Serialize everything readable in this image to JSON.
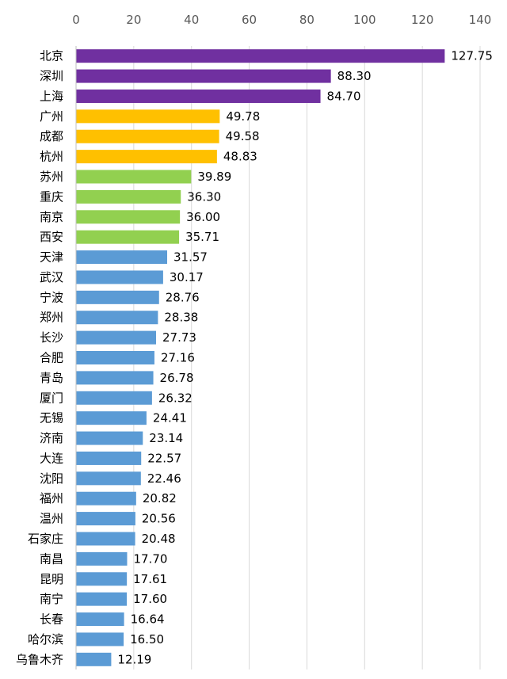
{
  "chart_data": {
    "type": "bar",
    "orientation": "horizontal",
    "title": "",
    "xlabel": "",
    "ylabel": "",
    "xlim": [
      0,
      140
    ],
    "x_ticks": [
      "0",
      "20",
      "40",
      "60",
      "80",
      "100",
      "120",
      "140"
    ],
    "x_axis_position": "top",
    "grid": true,
    "legend": "none",
    "colors": {
      "tier1": "#7030A0",
      "tier2": "#FFC000",
      "tier3": "#92D050",
      "tier4": "#5B9BD5",
      "grid": "#D9D9D9",
      "axis": "#BFBFBF"
    },
    "categories": [
      "北京",
      "深圳",
      "上海",
      "广州",
      "成都",
      "杭州",
      "苏州",
      "重庆",
      "南京",
      "西安",
      "天津",
      "武汉",
      "宁波",
      "郑州",
      "长沙",
      "合肥",
      "青岛",
      "厦门",
      "无锡",
      "济南",
      "大连",
      "沈阳",
      "福州",
      "温州",
      "石家庄",
      "南昌",
      "昆明",
      "南宁",
      "长春",
      "哈尔滨",
      "乌鲁木齐"
    ],
    "values": [
      127.75,
      88.3,
      84.7,
      49.78,
      49.58,
      48.83,
      39.89,
      36.3,
      36.0,
      35.71,
      31.57,
      30.17,
      28.76,
      28.38,
      27.73,
      27.16,
      26.78,
      26.32,
      24.41,
      23.14,
      22.57,
      22.46,
      20.82,
      20.56,
      20.48,
      17.7,
      17.61,
      17.6,
      16.64,
      16.5,
      12.19
    ],
    "value_labels": [
      "127.75",
      "88.30",
      "84.70",
      "49.78",
      "49.58",
      "48.83",
      "39.89",
      "36.30",
      "36.00",
      "35.71",
      "31.57",
      "30.17",
      "28.76",
      "28.38",
      "27.73",
      "27.16",
      "26.78",
      "26.32",
      "24.41",
      "23.14",
      "22.57",
      "22.46",
      "20.82",
      "20.56",
      "20.48",
      "17.70",
      "17.61",
      "17.60",
      "16.64",
      "16.50",
      "12.19"
    ],
    "bar_tiers": [
      "tier1",
      "tier1",
      "tier1",
      "tier2",
      "tier2",
      "tier2",
      "tier3",
      "tier3",
      "tier3",
      "tier3",
      "tier4",
      "tier4",
      "tier4",
      "tier4",
      "tier4",
      "tier4",
      "tier4",
      "tier4",
      "tier4",
      "tier4",
      "tier4",
      "tier4",
      "tier4",
      "tier4",
      "tier4",
      "tier4",
      "tier4",
      "tier4",
      "tier4",
      "tier4",
      "tier4"
    ]
  }
}
